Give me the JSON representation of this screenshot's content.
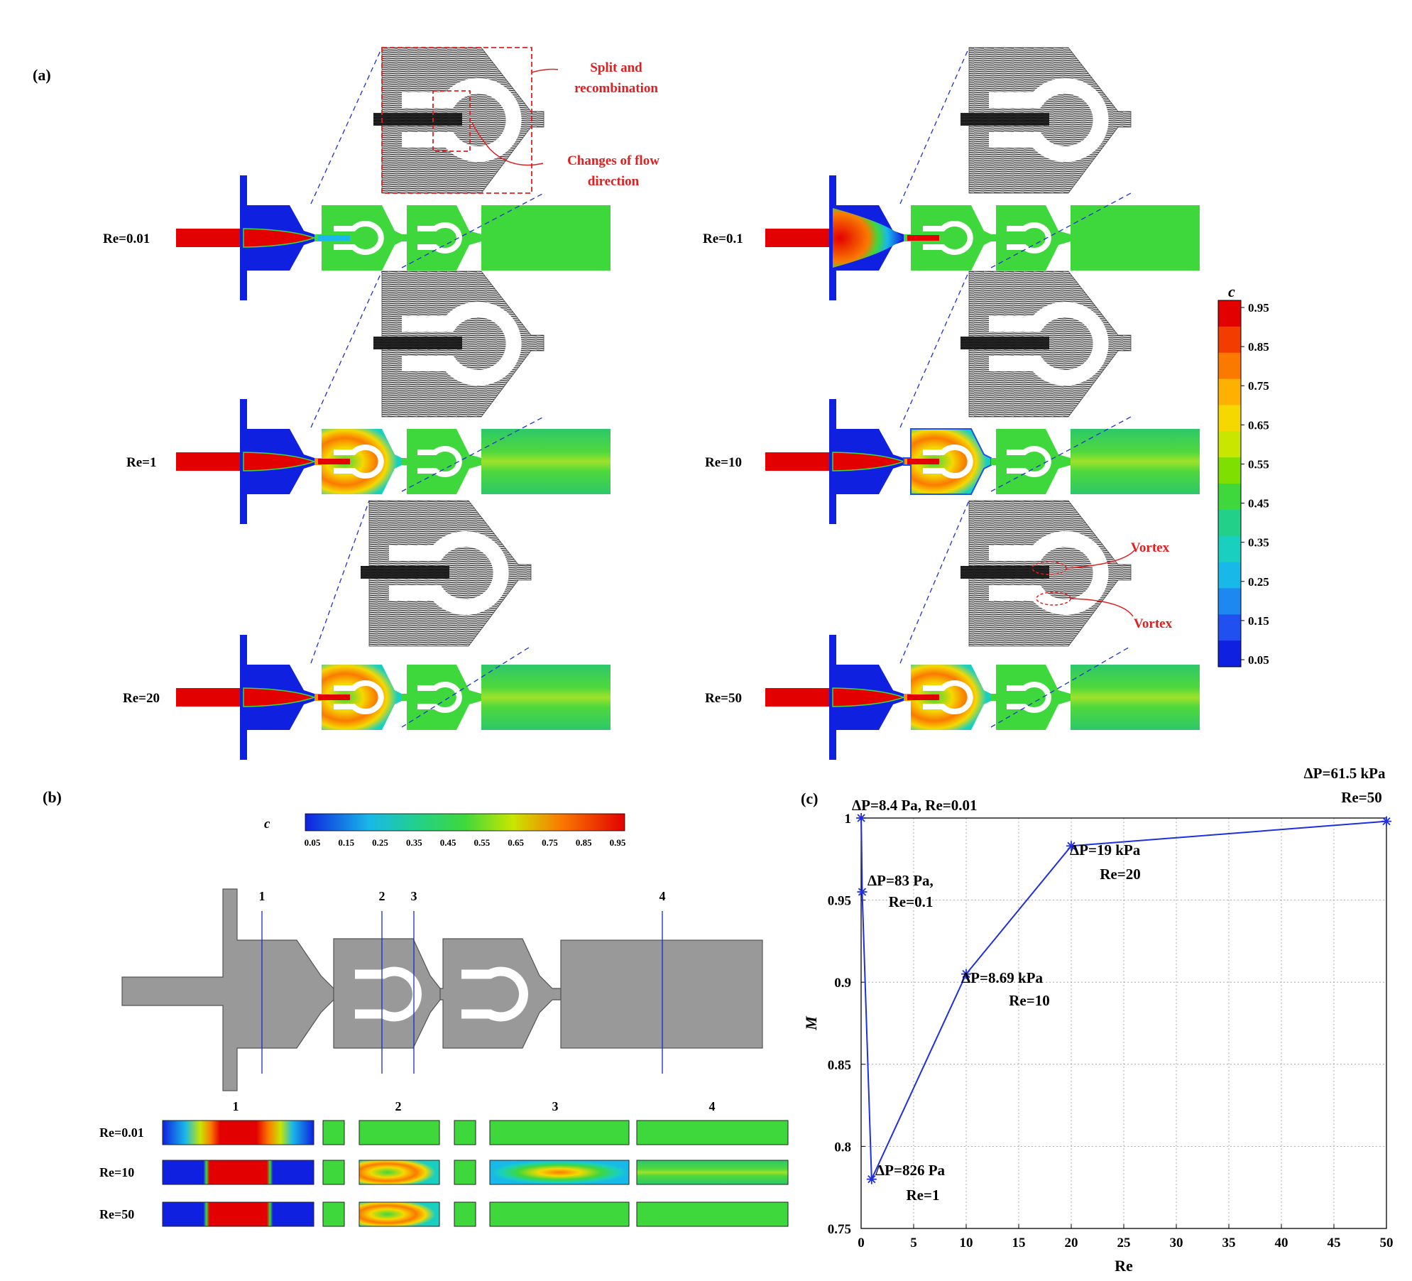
{
  "panel_a": {
    "label": "(a)",
    "cases": [
      {
        "re": "Re=0.01"
      },
      {
        "re": "Re=0.1"
      },
      {
        "re": "Re=1"
      },
      {
        "re": "Re=10"
      },
      {
        "re": "Re=20"
      },
      {
        "re": "Re=50"
      }
    ],
    "annotations": {
      "split_line1": "Split and",
      "split_line2": "recombination",
      "changes_line1": "Changes of flow",
      "changes_line2": "direction",
      "vortex_top": "Vortex",
      "vortex_bottom": "Vortex"
    },
    "colorbar": {
      "title": "c",
      "ticks": [
        "0.95",
        "0.85",
        "0.75",
        "0.65",
        "0.55",
        "0.45",
        "0.35",
        "0.25",
        "0.15",
        "0.05"
      ],
      "colors": [
        "#e30000",
        "#f23c00",
        "#fa7a00",
        "#ffb000",
        "#f5d800",
        "#c8e600",
        "#7fe000",
        "#3fd83c",
        "#22d08a",
        "#19d0c0",
        "#18b8e8",
        "#1c88f0",
        "#2050f0",
        "#1020e0"
      ]
    }
  },
  "panel_b": {
    "label": "(b)",
    "colorbar_title": "c",
    "colorbar_ticks": [
      "0.05",
      "0.15",
      "0.25",
      "0.35",
      "0.45",
      "0.55",
      "0.65",
      "0.75",
      "0.85",
      "0.95"
    ],
    "section_lines": [
      "1",
      "2",
      "3",
      "4"
    ],
    "section_headers": [
      "1",
      "2",
      "3",
      "4"
    ],
    "rows": [
      "Re=0.01",
      "Re=10",
      "Re=50"
    ]
  },
  "panel_c": {
    "label": "(c)",
    "chart_data": {
      "type": "line",
      "xlabel": "Re",
      "ylabel": "M",
      "xlim": [
        0,
        50
      ],
      "ylim": [
        0.75,
        1
      ],
      "xticks": [
        "0",
        "5",
        "10",
        "15",
        "20",
        "25",
        "30",
        "35",
        "40",
        "45",
        "50"
      ],
      "yticks": [
        "0.75",
        "0.8",
        "0.85",
        "0.9",
        "0.95",
        "1"
      ],
      "grid": true,
      "series": [
        {
          "x": [
            0.01,
            0.1,
            1,
            10,
            20,
            50
          ],
          "y": [
            1.0,
            0.955,
            0.78,
            0.905,
            0.983,
            0.998
          ]
        }
      ],
      "annotations": [
        {
          "line1": "ΔP=8.4 Pa, Re=0.01",
          "line2": ""
        },
        {
          "line1": "ΔP=83 Pa,",
          "line2": "Re=0.1"
        },
        {
          "line1": "ΔP=826 Pa",
          "line2": "Re=1"
        },
        {
          "line1": "ΔP=8.69 kPa",
          "line2": "Re=10"
        },
        {
          "line1": "ΔP=19 kPa",
          "line2": "Re=20"
        },
        {
          "line1": "ΔP=61.5 kPa",
          "line2": "Re=50"
        }
      ],
      "color": "#1f2ee0"
    }
  }
}
